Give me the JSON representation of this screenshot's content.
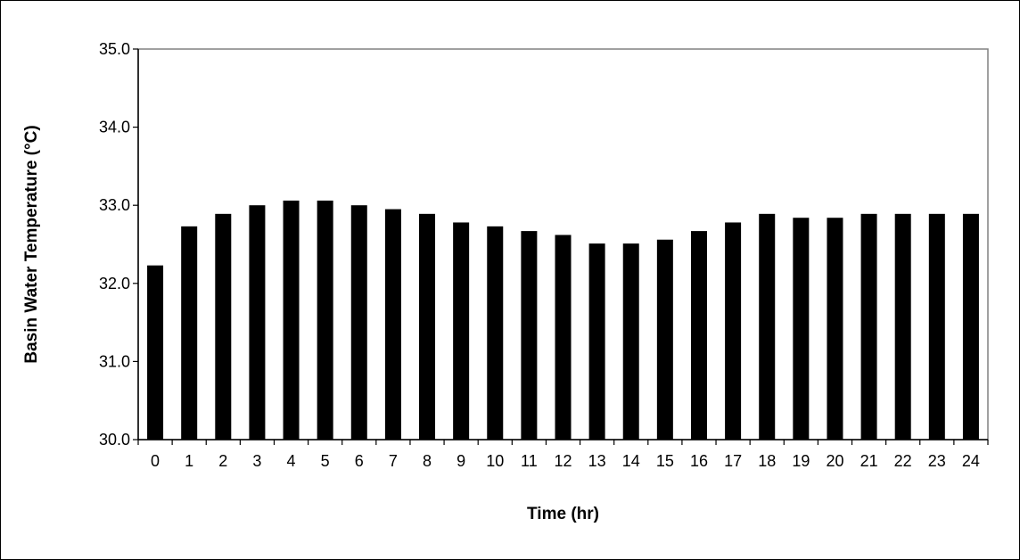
{
  "chart_data": {
    "type": "bar",
    "title": "",
    "xlabel": "Time (hr)",
    "ylabel": "Basin Water Temperature (°C)",
    "categories": [
      "0",
      "1",
      "2",
      "3",
      "4",
      "5",
      "6",
      "7",
      "8",
      "9",
      "10",
      "11",
      "12",
      "13",
      "14",
      "15",
      "16",
      "17",
      "18",
      "19",
      "20",
      "21",
      "22",
      "23",
      "24"
    ],
    "values": [
      32.23,
      32.73,
      32.89,
      33.0,
      33.06,
      33.06,
      33.0,
      32.95,
      32.89,
      32.78,
      32.73,
      32.67,
      32.62,
      32.51,
      32.51,
      32.56,
      32.67,
      32.78,
      32.89,
      32.84,
      32.84,
      32.89,
      32.89,
      32.89,
      32.89
    ],
    "ylim": [
      30.0,
      35.0
    ],
    "yticks": [
      "30.0",
      "31.0",
      "32.0",
      "33.0",
      "34.0",
      "35.0"
    ],
    "grid": false,
    "legend": "none",
    "colors": {
      "bar": "#000000",
      "plot_border": "#808080",
      "axis": "#000000"
    }
  }
}
